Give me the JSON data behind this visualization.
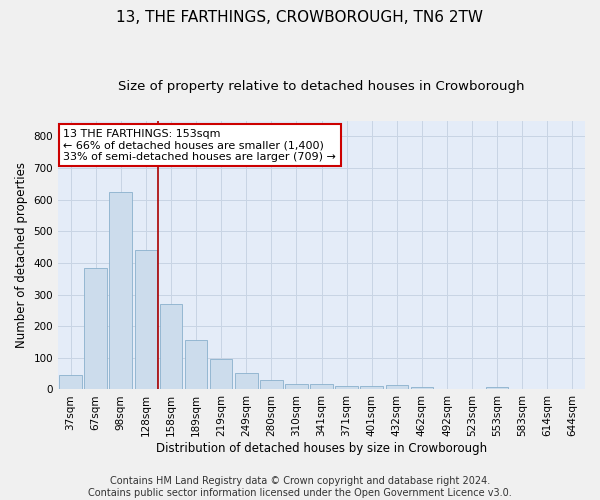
{
  "title": "13, THE FARTHINGS, CROWBOROUGH, TN6 2TW",
  "subtitle": "Size of property relative to detached houses in Crowborough",
  "xlabel": "Distribution of detached houses by size in Crowborough",
  "ylabel": "Number of detached properties",
  "categories": [
    "37sqm",
    "67sqm",
    "98sqm",
    "128sqm",
    "158sqm",
    "189sqm",
    "219sqm",
    "249sqm",
    "280sqm",
    "310sqm",
    "341sqm",
    "371sqm",
    "401sqm",
    "432sqm",
    "462sqm",
    "492sqm",
    "523sqm",
    "553sqm",
    "583sqm",
    "614sqm",
    "644sqm"
  ],
  "values": [
    45,
    383,
    625,
    440,
    270,
    155,
    95,
    52,
    30,
    17,
    17,
    12,
    12,
    15,
    8,
    0,
    0,
    8,
    0,
    0,
    0
  ],
  "bar_color": "#ccdcec",
  "bar_edge_color": "#8ab0cc",
  "vline_index": 3.5,
  "vline_color": "#aa0000",
  "annotation_text": "13 THE FARTHINGS: 153sqm\n← 66% of detached houses are smaller (1,400)\n33% of semi-detached houses are larger (709) →",
  "annotation_box_color": "#ffffff",
  "annotation_box_edge": "#cc0000",
  "ylim": [
    0,
    850
  ],
  "yticks": [
    0,
    100,
    200,
    300,
    400,
    500,
    600,
    700,
    800
  ],
  "grid_color": "#c8d4e4",
  "background_color": "#e4ecf8",
  "fig_background": "#f0f0f0",
  "footer_text": "Contains HM Land Registry data © Crown copyright and database right 2024.\nContains public sector information licensed under the Open Government Licence v3.0.",
  "title_fontsize": 11,
  "subtitle_fontsize": 9.5,
  "xlabel_fontsize": 8.5,
  "ylabel_fontsize": 8.5,
  "tick_fontsize": 7.5,
  "annotation_fontsize": 8,
  "footer_fontsize": 7
}
